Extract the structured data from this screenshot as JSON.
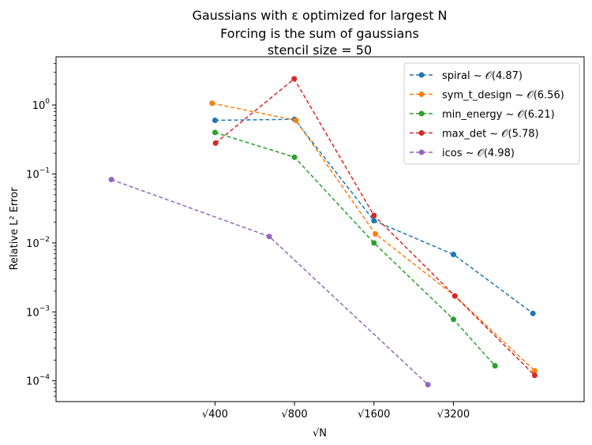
{
  "chart_data": {
    "type": "line",
    "title_lines": [
      "Gaussians with ε optimized for largest N",
      "Forcing is the sum of gaussians",
      "stencil size = 50"
    ],
    "xlabel": "√N",
    "ylabel": "Relative L² Error",
    "xscale": "log",
    "yscale": "log",
    "xlim": [
      100,
      10000
    ],
    "ylim": [
      5e-05,
      5
    ],
    "xticks": [
      {
        "value": 400,
        "label": "√400"
      },
      {
        "value": 800,
        "label": "√800"
      },
      {
        "value": 1600,
        "label": "√1600"
      },
      {
        "value": 3200,
        "label": "√3200"
      }
    ],
    "yticks": [
      {
        "value": 0.0001,
        "base": "10",
        "exp": "−4"
      },
      {
        "value": 0.001,
        "base": "10",
        "exp": "−3"
      },
      {
        "value": 0.01,
        "base": "10",
        "exp": "−2"
      },
      {
        "value": 0.1,
        "base": "10",
        "exp": "−1"
      },
      {
        "value": 1,
        "base": "10",
        "exp": "0"
      }
    ],
    "grid": false,
    "legend_position": "top-right",
    "series": [
      {
        "name": "spiral ~ 𝒪(4.87)",
        "color": "#1f77b4",
        "x": [
          400,
          800,
          1600,
          3200,
          6400
        ],
        "y": [
          0.6,
          0.62,
          0.021,
          0.0068,
          0.00095
        ]
      },
      {
        "name": "sym_t_design ~ 𝒪(6.56)",
        "color": "#ff7f0e",
        "x": [
          390,
          810,
          1620,
          3240,
          6500
        ],
        "y": [
          1.06,
          0.6,
          0.0135,
          0.0017,
          0.00014
        ]
      },
      {
        "name": "min_energy ~ 𝒪(6.21)",
        "color": "#2ca02c",
        "x": [
          400,
          800,
          1600,
          3200,
          4600
        ],
        "y": [
          0.4,
          0.175,
          0.01,
          0.00078,
          0.000165
        ]
      },
      {
        "name": "max_det ~ 𝒪(5.78)",
        "color": "#d62728",
        "x": [
          402,
          798,
          1600,
          3240,
          6500
        ],
        "y": [
          0.28,
          2.4,
          0.025,
          0.0017,
          0.00012
        ]
      },
      {
        "name": "icos ~ 𝒪(4.98)",
        "color": "#9467bd",
        "x": [
          162,
          642,
          2562
        ],
        "y": [
          0.083,
          0.0124,
          8.8e-05
        ]
      }
    ]
  }
}
